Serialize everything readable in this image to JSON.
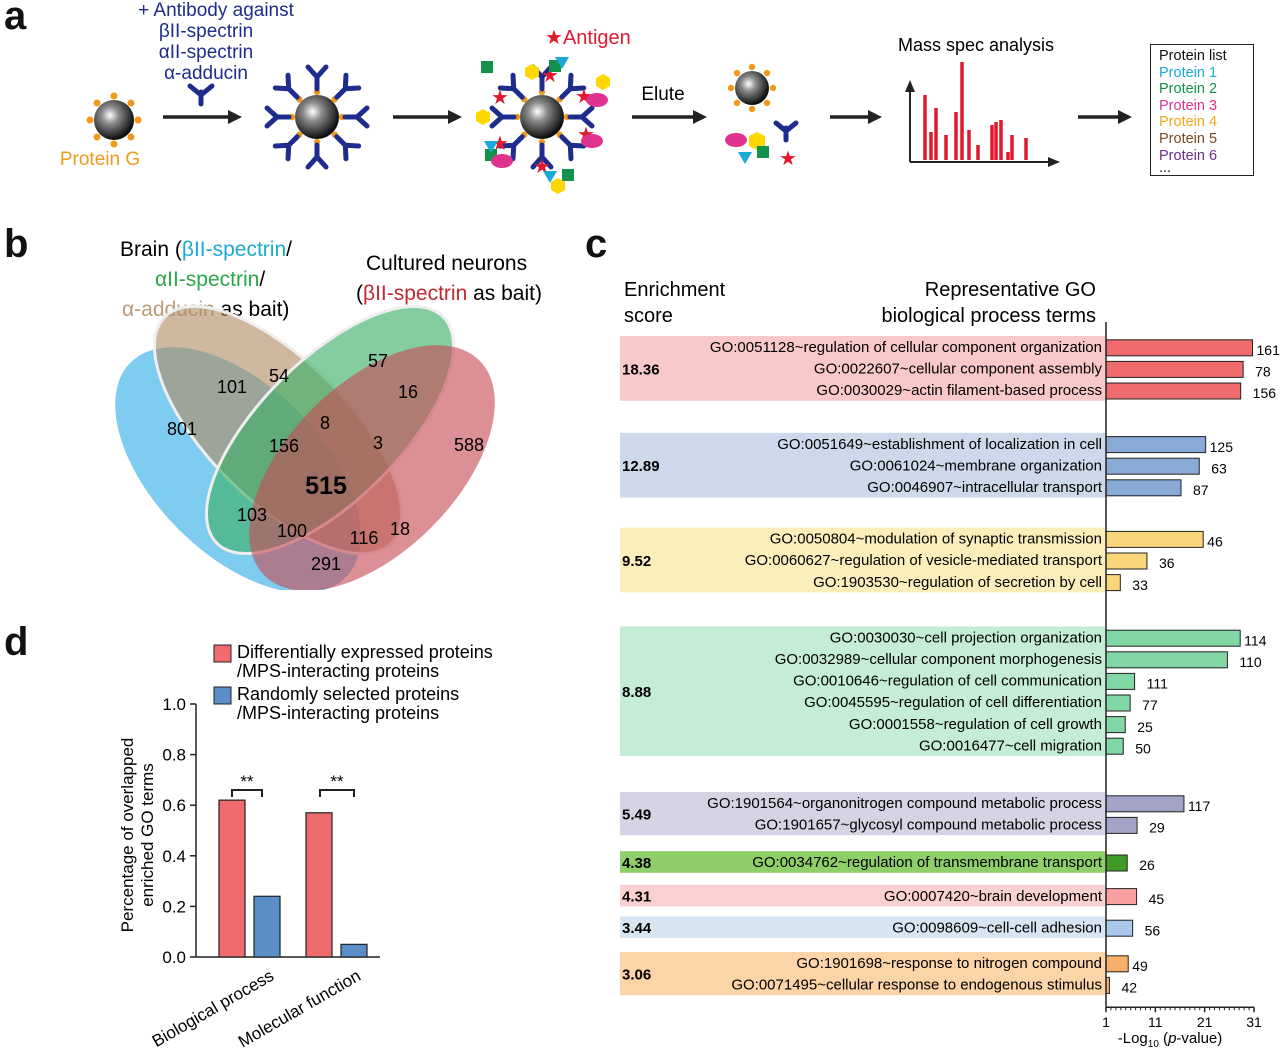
{
  "panels": {
    "a": "a",
    "b": "b",
    "c": "c",
    "d": "d"
  },
  "panel_a": {
    "antibody_title": "+ Antibody against",
    "antibody_list": [
      "βII-spectrin",
      "αII-spectrin",
      "α-adducin"
    ],
    "protein_g": "Protein G",
    "antigen": "Antigen",
    "elute": "Elute",
    "mass_spec": "Mass spec analysis",
    "protein_list_title": "Protein list",
    "protein_list": [
      {
        "label": "Protein 1",
        "color": "#1ba9d6"
      },
      {
        "label": "Protein 2",
        "color": "#12924a"
      },
      {
        "label": "Protein 3",
        "color": "#e0338f"
      },
      {
        "label": "Protein 4",
        "color": "#f2a71b"
      },
      {
        "label": "Protein 5",
        "color": "#7a4a1e"
      },
      {
        "label": "Protein 6",
        "color": "#6a2f8f"
      }
    ],
    "ellipsis": "...",
    "colors": {
      "antibody": "#1e2c8e",
      "protein_g": "#f09a1d",
      "antigen": "#e2192c"
    }
  },
  "panel_b": {
    "brain_label": {
      "line1_pre": "Brain (",
      "line1_colored": "βII-spectrin",
      "line1_post": "/",
      "line2_colored": "αII-spectrin",
      "line2_post": "/",
      "line3_colored": "α-adducin",
      "line3_post": " as bait)"
    },
    "neurons_label": {
      "line1": "Cultured neurons",
      "line2_pre": "(",
      "line2_colored": "βII-spectrin",
      "line2_post": " as bait)"
    },
    "colors": {
      "beta_brain": "#1ba9d6",
      "alpha": "#2aa84a",
      "adducin": "#b99b7b",
      "beta_neuron": "#c2282f"
    },
    "counts": {
      "only_beta_brain": "801",
      "beta_adducin": "101",
      "only_adducin": "54",
      "only_alpha": "57",
      "alpha_neuron": "16",
      "only_neuron": "588",
      "adducin_alpha": "8",
      "beta_adducin_alpha": "156",
      "adducin_alpha_neuron": "3",
      "all_four": "515",
      "beta_alpha": "103",
      "beta_alpha_neuron": "100",
      "beta_adducin_alpha_neuron_b": "116",
      "adducin_neuron": "18",
      "beta_neuron": "291"
    }
  },
  "panel_c": {
    "header_score": [
      "Enrichment",
      "score"
    ],
    "header_terms": [
      "Representative GO",
      "biological process terms"
    ],
    "xlabel_pre": "-Log",
    "xlabel_sub": "10",
    "xlabel_post": " (",
    "xlabel_italic": "p",
    "xlabel_end": "-value)",
    "chart_data": {
      "type": "bar",
      "orientation": "horizontal",
      "xlabel": "-Log10 (p-value)",
      "xticks": [
        "1",
        "11",
        "21",
        "31"
      ],
      "xlim": [
        1,
        31
      ],
      "groups": [
        {
          "score": "18.36",
          "bg": "#f9c9c9",
          "bar": "#ef6b6e",
          "terms": [
            {
              "term": "GO:0051128~regulation of cellular component organization",
              "value": 30.7,
              "count": "161"
            },
            {
              "term": "GO:0022607~cellular component assembly",
              "value": 28.8,
              "count": "78"
            },
            {
              "term": "GO:0030029~actin filament-based process",
              "value": 28.3,
              "count": "156"
            }
          ]
        },
        {
          "score": "12.89",
          "bg": "#cdd9ea",
          "bar": "#8aaad6",
          "terms": [
            {
              "term": "GO:0051649~establishment of localization in cell",
              "value": 21.2,
              "count": "125"
            },
            {
              "term": "GO:0061024~membrane organization",
              "value": 19.9,
              "count": "63"
            },
            {
              "term": "GO:0046907~intracellular transport",
              "value": 16.2,
              "count": "87"
            }
          ]
        },
        {
          "score": "9.52",
          "bg": "#fbeebb",
          "bar": "#f9d67a",
          "terms": [
            {
              "term": "GO:0050804~modulation of synaptic transmission",
              "value": 20.7,
              "count": "46"
            },
            {
              "term": "GO:0060627~regulation of vesicle-mediated transport",
              "value": 9.3,
              "count": "36"
            },
            {
              "term": "GO:1903530~regulation of secretion by cell",
              "value": 3.9,
              "count": "33"
            }
          ]
        },
        {
          "score": "8.88",
          "bg": "#c5ecd5",
          "bar": "#82d8a5",
          "terms": [
            {
              "term": "GO:0030030~cell projection organization",
              "value": 28.2,
              "count": "114"
            },
            {
              "term": "GO:0032989~cellular component morphogenesis",
              "value": 25.6,
              "count": "110"
            },
            {
              "term": "GO:0010646~regulation of cell communication",
              "value": 6.8,
              "count": "111"
            },
            {
              "term": "GO:0045595~regulation of cell differentiation",
              "value": 5.9,
              "count": "77"
            },
            {
              "term": "GO:0001558~regulation of cell growth",
              "value": 4.9,
              "count": "25"
            },
            {
              "term": "GO:0016477~cell migration",
              "value": 4.5,
              "count": "50"
            }
          ]
        },
        {
          "score": "5.49",
          "bg": "#d4d4e4",
          "bar": "#a3a3c8",
          "terms": [
            {
              "term": "GO:1901564~organonitrogen compound metabolic process",
              "value": 16.8,
              "count": "117"
            },
            {
              "term": "GO:1901657~glycosyl compound metabolic process",
              "value": 7.3,
              "count": "29"
            }
          ]
        },
        {
          "score": "4.38",
          "bg": "#8fcf6a",
          "bar": "#3f9a27",
          "terms": [
            {
              "term": "GO:0034762~regulation of transmembrane transport",
              "value": 5.3,
              "count": "26"
            }
          ]
        },
        {
          "score": "4.31",
          "bg": "#fbd0d0",
          "bar": "#f8a0a0",
          "terms": [
            {
              "term": "GO:0007420~brain development",
              "value": 7.2,
              "count": "45"
            }
          ]
        },
        {
          "score": "3.44",
          "bg": "#d7e5f3",
          "bar": "#a9c8ea",
          "terms": [
            {
              "term": "GO:0098609~cell-cell adhesion",
              "value": 6.4,
              "count": "56"
            }
          ]
        },
        {
          "score": "3.06",
          "bg": "#fbd4a8",
          "bar": "#f7b069",
          "terms": [
            {
              "term": "GO:1901698~response to nitrogen compound",
              "value": 5.5,
              "count": "49"
            },
            {
              "term": "GO:0071495~cellular response to endogenous stimulus",
              "value": 1.7,
              "count": "42"
            }
          ]
        }
      ]
    }
  },
  "panel_d": {
    "legend": [
      {
        "line1": "Differentially expressed proteins",
        "line2": "/MPS-interacting proteins",
        "color": "#ef6b6e"
      },
      {
        "line1": "Randomly selected proteins",
        "line2": "/MPS-interacting proteins",
        "color": "#5b8dc6"
      }
    ],
    "ylabel": [
      "Percentage of overlapped",
      "enriched GO terms"
    ],
    "significance": "**",
    "chart_data": {
      "type": "bar",
      "categories": [
        "Biological process",
        "Molecular function"
      ],
      "series": [
        {
          "name": "Differentially expressed proteins/MPS-interacting proteins",
          "values": [
            0.62,
            0.57
          ]
        },
        {
          "name": "Randomly selected proteins/MPS-interacting proteins",
          "values": [
            0.24,
            0.05
          ]
        }
      ],
      "ylim": [
        0,
        1.0
      ],
      "yticks": [
        "0.0",
        "0.2",
        "0.4",
        "0.6",
        "0.8",
        "1.0"
      ]
    }
  }
}
